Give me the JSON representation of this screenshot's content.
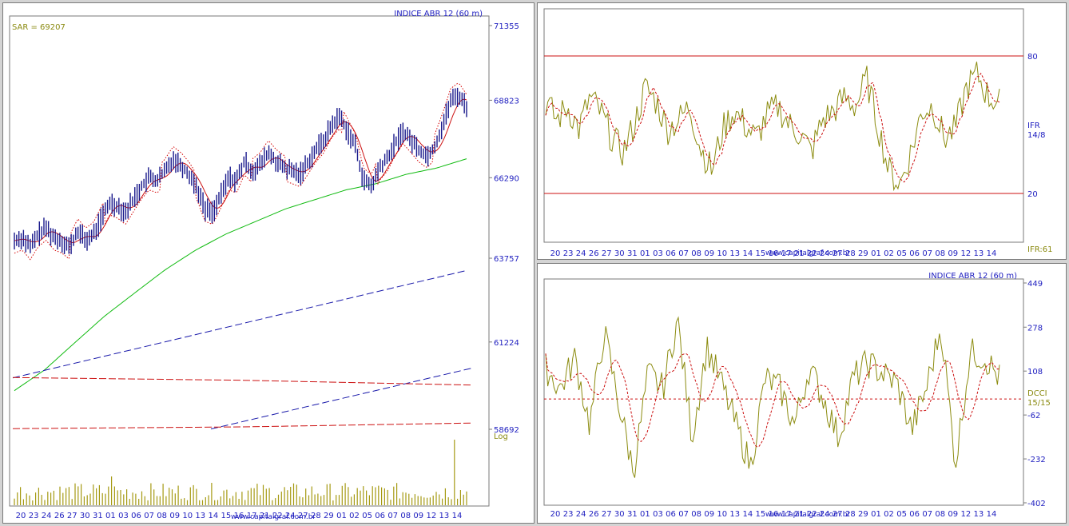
{
  "colors": {
    "bars": "#1a1a8c",
    "sar": "#d40000",
    "ma_short": "#cc1111",
    "ma_long": "#11bb11",
    "trend_blue": "#1a1aaa",
    "trend_red": "#cc1111",
    "volume": "#a59a12",
    "osc_line": "#8c8c10",
    "osc_signal": "#cc1111",
    "axis_text": "#2020c0",
    "ind_text": "#8a8a10"
  },
  "x_labels": [
    "20",
    "23",
    "24",
    "26",
    "27",
    "30",
    "31",
    "01",
    "03",
    "06",
    "07",
    "08",
    "09",
    "10",
    "13",
    "14",
    "15",
    "16",
    "17",
    "21",
    "22",
    "24",
    "27",
    "28",
    "29",
    "01",
    "02",
    "05",
    "06",
    "07",
    "08",
    "09",
    "12",
    "13",
    "14"
  ],
  "watermark": "www.capitalgraf.com.br",
  "main_chart": {
    "title": "INDICE ABR 12 (60 m)",
    "sar_label": "SAR = 69207",
    "y_ticks": [
      "71355",
      "68823",
      "66290",
      "63757",
      "61224",
      "58692"
    ],
    "scale_label": "Log"
  },
  "ifr_chart": {
    "label_top": "IFR",
    "label_params": "14/8",
    "bottom_label": "IFR:61",
    "y_ticks": [
      "80",
      "20"
    ]
  },
  "dcci_chart": {
    "title": "INDICE ABR 12 (60 m)",
    "label_top": "DCCI",
    "label_params": "15/15",
    "y_ticks": [
      "449",
      "278",
      "108",
      "-62",
      "-232",
      "-402"
    ]
  },
  "chart_data": [
    {
      "type": "candlestick",
      "title": "INDICE ABR 12 (60 m)",
      "ylim": [
        58692,
        71355
      ],
      "y_scale": "log",
      "x_categories": [
        "20",
        "23",
        "24",
        "26",
        "27",
        "30",
        "31",
        "01",
        "03",
        "06",
        "07",
        "08",
        "09",
        "10",
        "13",
        "14",
        "15",
        "16",
        "17",
        "21",
        "22",
        "24",
        "27",
        "28",
        "29",
        "01",
        "02",
        "05",
        "06",
        "07",
        "08",
        "09",
        "12",
        "13",
        "14"
      ],
      "close_path_approx": [
        64300,
        64400,
        64100,
        64500,
        64700,
        64400,
        64300,
        64100,
        64600,
        64300,
        64500,
        65000,
        65500,
        65400,
        65200,
        65600,
        66000,
        66300,
        66200,
        66500,
        66900,
        66700,
        66400,
        66000,
        65300,
        65200,
        65700,
        66300,
        66200,
        66800,
        66500,
        66700,
        67100,
        66800,
        66600,
        66500,
        66400,
        66800,
        67200,
        67500,
        68000,
        68300,
        67800,
        67300,
        66200,
        66000,
        66600,
        66900,
        67400,
        67800,
        67500,
        67200,
        67000,
        67300,
        68000,
        68800,
        69000,
        68600
      ],
      "sar_last": 69207,
      "volume_note": "volume histogram at bottom",
      "trendlines": [
        "blue dashed rising",
        "red dashed horizontal"
      ]
    },
    {
      "type": "line",
      "series": [
        {
          "name": "IFR"
        }
      ],
      "ylim": [
        0,
        100
      ],
      "reference_lines": [
        80,
        20
      ],
      "last_value": 61
    },
    {
      "type": "line",
      "series": [
        {
          "name": "DCCI"
        }
      ],
      "ylim": [
        -402,
        449
      ],
      "y_ticks": [
        449,
        278,
        108,
        -62,
        -232,
        -402
      ]
    }
  ]
}
